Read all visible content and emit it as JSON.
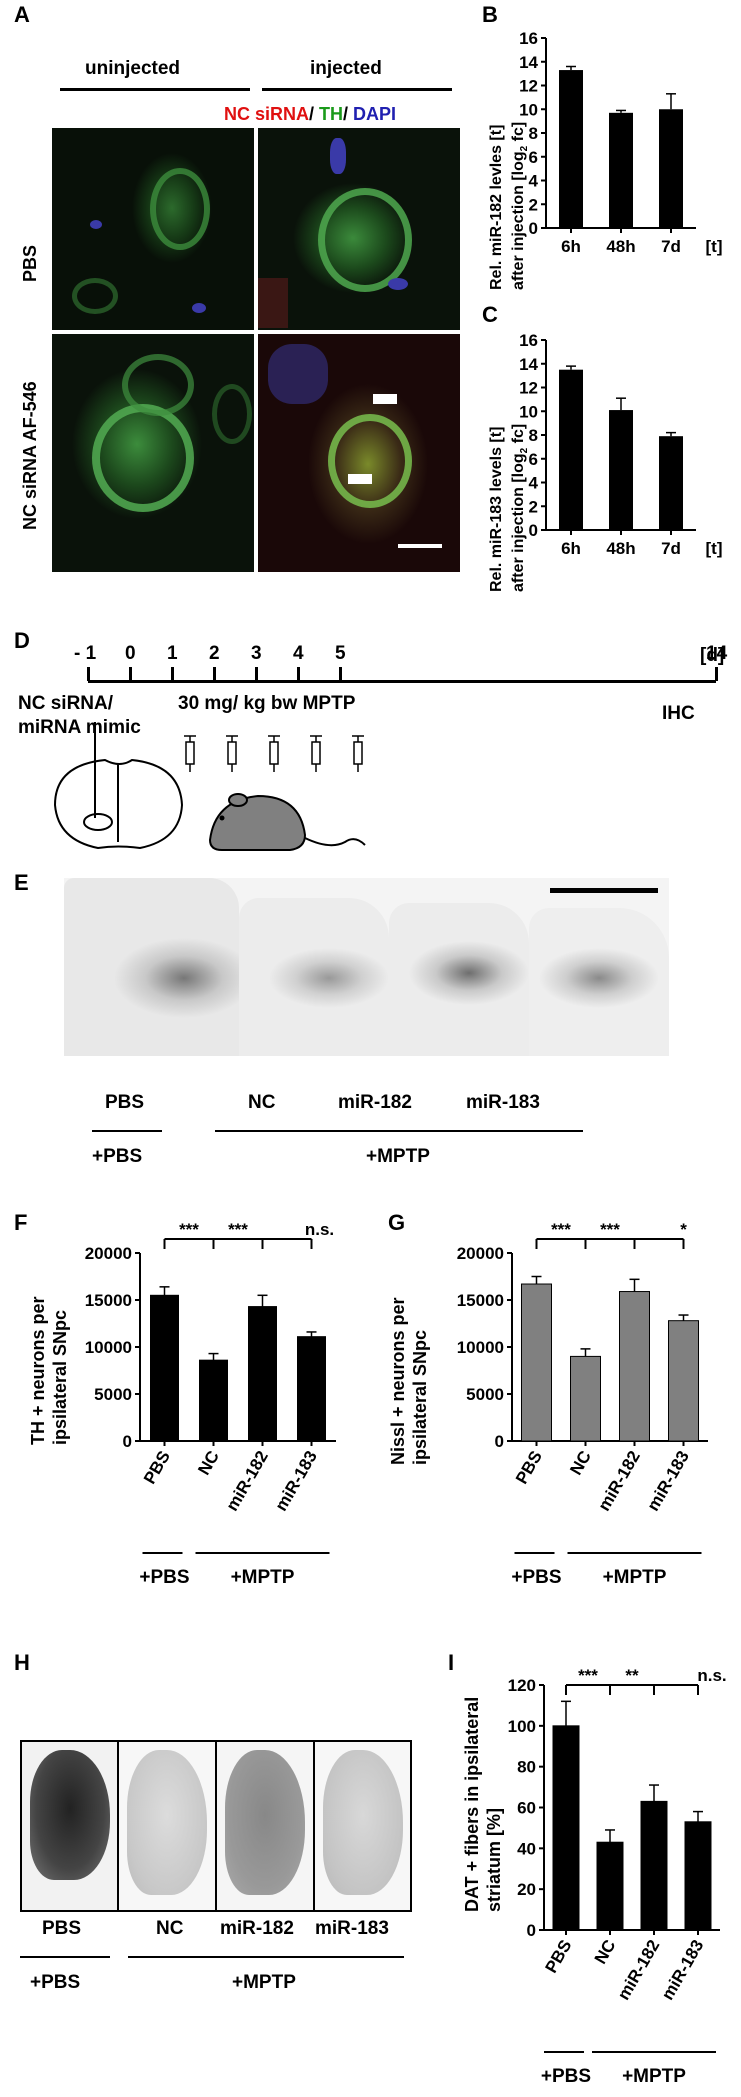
{
  "panelA": {
    "label": "A",
    "col_uninjected": "uninjected",
    "col_injected": "injected",
    "stain_nc": "NC siRNA",
    "stain_sep1": "/ ",
    "stain_th": "TH",
    "stain_sep2": "/ ",
    "stain_dapi": "DAPI",
    "row_pbs": "PBS",
    "row_nc": "NC siRNA AF-546"
  },
  "panelB": {
    "label": "B"
  },
  "panelC": {
    "label": "C"
  },
  "panelD": {
    "label": "D",
    "ticks": [
      "- 1",
      "0",
      "1",
      "2",
      "3",
      "4",
      "5",
      "14"
    ],
    "unit": "[d]",
    "left_line1": "NC siRNA/",
    "left_line2": "miRNA mimic",
    "dose": "30 mg/ kg bw MPTP",
    "end": "IHC"
  },
  "panelE": {
    "label": "E",
    "pbs": "PBS",
    "nc": "NC",
    "m182": "miR-182",
    "m183": "miR-183",
    "plus_pbs": "+PBS",
    "plus_mptp": "+MPTP"
  },
  "panelF": {
    "label": "F"
  },
  "panelG": {
    "label": "G"
  },
  "panelH": {
    "label": "H",
    "pbs": "PBS",
    "nc": "NC",
    "m182": "miR-182",
    "m183": "miR-183",
    "plus_pbs": "+PBS",
    "plus_mptp": "+MPTP"
  },
  "panelI": {
    "label": "I"
  },
  "chart_data": [
    {
      "id": "B",
      "type": "bar",
      "ylabel_line1": "Rel. miR-182 levles [t]",
      "ylabel_line2": "after injection [log",
      "ylabel_sub": "2",
      "ylabel_end": " fc]",
      "categories": [
        "6h",
        "48h",
        "7d"
      ],
      "x_unit": "[t]",
      "values": [
        13.3,
        9.7,
        10.0
      ],
      "errors": [
        0.3,
        0.2,
        1.3
      ],
      "ylim": [
        0,
        16
      ],
      "yticks": [
        "0",
        "2",
        "4",
        "6",
        "8",
        "10",
        "12",
        "14",
        "16"
      ],
      "bar_color": "#000000"
    },
    {
      "id": "C",
      "type": "bar",
      "ylabel_line1": "Rel. miR-183 levels [t]",
      "ylabel_line2": "after injection [log",
      "ylabel_sub": "2",
      "ylabel_end": " fc]",
      "categories": [
        "6h",
        "48h",
        "7d"
      ],
      "x_unit": "[t]",
      "values": [
        13.5,
        10.1,
        7.9
      ],
      "errors": [
        0.3,
        1.0,
        0.3
      ],
      "ylim": [
        0,
        16
      ],
      "yticks": [
        "0",
        "2",
        "4",
        "6",
        "8",
        "10",
        "12",
        "14",
        "16"
      ],
      "bar_color": "#000000"
    },
    {
      "id": "F",
      "type": "bar",
      "ylabel_line1": "TH + neurons per",
      "ylabel_line2": "ipsilateral SNpc",
      "categories": [
        "PBS",
        "NC",
        "miR-182",
        "miR-183"
      ],
      "values": [
        15500,
        8600,
        14300,
        11100
      ],
      "errors": [
        900,
        700,
        1200,
        500
      ],
      "ylim": [
        0,
        20000
      ],
      "yticks": [
        "0",
        "5000",
        "10000",
        "15000",
        "20000"
      ],
      "significance": [
        "***",
        "***",
        "n.s."
      ],
      "group_pbs": "+PBS",
      "group_mptp": "+MPTP",
      "bar_color": "#000000"
    },
    {
      "id": "G",
      "type": "bar",
      "ylabel_line1": "Nissl + neurons per",
      "ylabel_line2": "ipsilateral SNpc",
      "categories": [
        "PBS",
        "NC",
        "miR-182",
        "miR-183"
      ],
      "values": [
        16700,
        9000,
        15900,
        12800
      ],
      "errors": [
        800,
        800,
        1300,
        600
      ],
      "ylim": [
        0,
        20000
      ],
      "yticks": [
        "0",
        "5000",
        "10000",
        "15000",
        "20000"
      ],
      "significance": [
        "***",
        "***",
        "*"
      ],
      "group_pbs": "+PBS",
      "group_mptp": "+MPTP",
      "bar_color": "#808080"
    },
    {
      "id": "I",
      "type": "bar",
      "ylabel_line1": "DAT + fibers in ipsilateral",
      "ylabel_line2": "striatum [%]",
      "categories": [
        "PBS",
        "NC",
        "miR-182",
        "miR-183"
      ],
      "values": [
        100,
        43,
        63,
        53
      ],
      "errors": [
        12,
        6,
        8,
        5
      ],
      "ylim": [
        0,
        120
      ],
      "yticks": [
        "0",
        "20",
        "40",
        "60",
        "80",
        "100",
        "120"
      ],
      "significance": [
        "***",
        "**",
        "n.s."
      ],
      "group_pbs": "+PBS",
      "group_mptp": "+MPTP",
      "bar_color": "#000000"
    }
  ]
}
